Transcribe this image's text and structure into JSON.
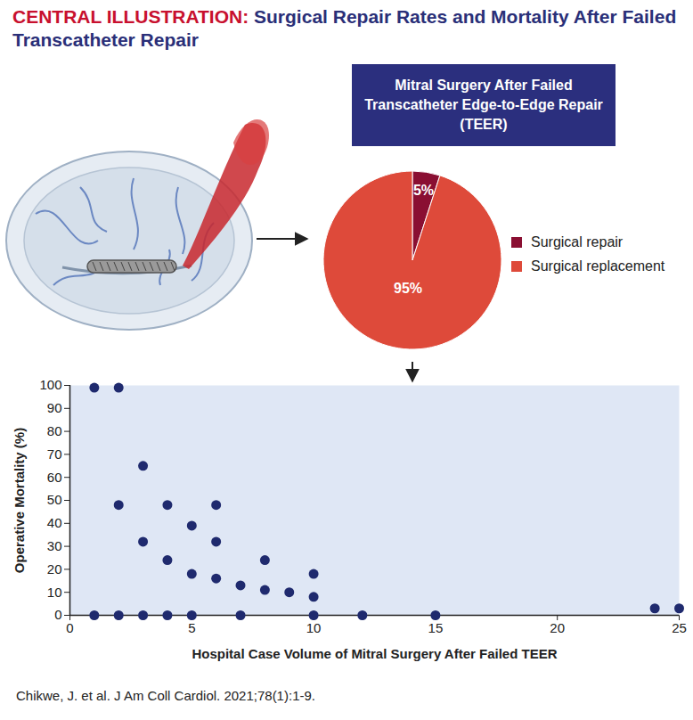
{
  "header": {
    "label": "CENTRAL ILLUSTRATION:",
    "title": "Surgical Repair Rates and Mortality After Failed Transcatheter Repair"
  },
  "chart_data": [
    {
      "type": "pie",
      "title": "Mitral Surgery After Failed Transcatheter Edge-to-Edge Repair (TEER)",
      "categories": [
        "Surgical repair",
        "Surgical replacement"
      ],
      "values": [
        5,
        95
      ],
      "value_labels": [
        "5%",
        "95%"
      ],
      "colors": [
        "#8a0f32",
        "#de4a3a"
      ],
      "data_labels": true,
      "legend": "right"
    },
    {
      "type": "scatter",
      "x": [
        1,
        1,
        2,
        2,
        2,
        3,
        3,
        3,
        4,
        4,
        4,
        5,
        5,
        5,
        6,
        6,
        6,
        7,
        7,
        8,
        8,
        9,
        10,
        10,
        10,
        12,
        15,
        24,
        25
      ],
      "values": [
        99,
        0,
        99,
        48,
        0,
        65,
        32,
        0,
        48,
        24,
        0,
        39,
        18,
        0,
        48,
        32,
        16,
        13,
        0,
        24,
        11,
        10,
        18,
        8,
        0,
        0,
        0,
        3,
        3
      ],
      "xlabel": "Hospital Case Volume of Mitral Surgery After Failed TEER",
      "ylabel": "Operative Mortality (%)",
      "xlim": [
        0,
        25
      ],
      "ylim": [
        0,
        100
      ],
      "xticks": [
        0,
        5,
        10,
        15,
        20,
        25
      ],
      "yticks": [
        0,
        10,
        20,
        30,
        40,
        50,
        60,
        70,
        80,
        90,
        100
      ],
      "color": "#1f2a6e",
      "marker": "circle",
      "grid": false
    }
  ],
  "citation": "Chikwe, J. et al. J Am Coll Cardiol. 2021;78(1):1-9."
}
